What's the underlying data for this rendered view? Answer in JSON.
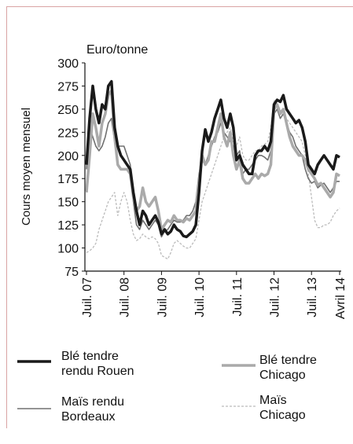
{
  "chart_data": {
    "type": "line",
    "subtitle": "Euro/tonne",
    "y_label": "Cours moyen mensuel",
    "categories": [
      "Juil. 07",
      null,
      null,
      null,
      null,
      null,
      null,
      null,
      null,
      null,
      null,
      null,
      "Juil. 08",
      null,
      null,
      null,
      null,
      null,
      null,
      null,
      null,
      null,
      null,
      null,
      "Juil. 09",
      null,
      null,
      null,
      null,
      null,
      null,
      null,
      null,
      null,
      null,
      null,
      "Juil. 10",
      null,
      null,
      null,
      null,
      null,
      null,
      null,
      null,
      null,
      null,
      null,
      "Juil. 11",
      null,
      null,
      null,
      null,
      null,
      null,
      null,
      null,
      null,
      null,
      null,
      "Juil. 12",
      null,
      null,
      null,
      null,
      null,
      null,
      null,
      null,
      null,
      null,
      null,
      "Juil. 13",
      null,
      null,
      null,
      null,
      null,
      null,
      null,
      null,
      "Avril 14"
    ],
    "ylim": [
      75,
      300
    ],
    "yticks": [
      75,
      100,
      125,
      150,
      175,
      200,
      225,
      250,
      275,
      300
    ],
    "series": [
      {
        "name": "Blé tendre rendu Rouen",
        "color": "#1a1a1a",
        "width": 3.5,
        "values": [
          190,
          240,
          275,
          250,
          235,
          255,
          250,
          275,
          280,
          230,
          210,
          200,
          195,
          190,
          185,
          160,
          140,
          125,
          140,
          135,
          125,
          130,
          135,
          128,
          115,
          120,
          115,
          118,
          125,
          120,
          118,
          113,
          112,
          115,
          118,
          125,
          160,
          205,
          228,
          215,
          225,
          240,
          250,
          260,
          240,
          230,
          245,
          230,
          195,
          200,
          190,
          185,
          180,
          180,
          200,
          205,
          205,
          210,
          205,
          215,
          255,
          260,
          258,
          265,
          250,
          245,
          240,
          235,
          238,
          230,
          215,
          190,
          185,
          180,
          190,
          195,
          200,
          195,
          190,
          185,
          200,
          198
        ]
      },
      {
        "name": "Blé tendre Chicago",
        "color": "#aaaaaa",
        "width": 3.5,
        "values": [
          160,
          200,
          245,
          230,
          210,
          235,
          245,
          265,
          270,
          220,
          190,
          185,
          185,
          185,
          180,
          155,
          140,
          145,
          165,
          150,
          145,
          150,
          155,
          140,
          120,
          125,
          130,
          128,
          135,
          130,
          130,
          128,
          132,
          130,
          135,
          140,
          170,
          200,
          190,
          195,
          215,
          215,
          230,
          245,
          220,
          210,
          225,
          200,
          185,
          195,
          175,
          170,
          170,
          175,
          180,
          175,
          180,
          178,
          180,
          190,
          250,
          255,
          245,
          250,
          235,
          220,
          210,
          205,
          200,
          200,
          195,
          185,
          180,
          175,
          168,
          170,
          165,
          160,
          155,
          160,
          180,
          178
        ]
      },
      {
        "name": "Maïs rendu Bordeaux",
        "color": "#707070",
        "width": 1.6,
        "values": [
          185,
          230,
          220,
          210,
          205,
          210,
          220,
          235,
          240,
          215,
          210,
          210,
          210,
          200,
          190,
          150,
          125,
          120,
          130,
          125,
          120,
          125,
          130,
          125,
          112,
          118,
          120,
          125,
          130,
          128,
          128,
          130,
          135,
          135,
          140,
          150,
          180,
          195,
          190,
          200,
          210,
          220,
          225,
          235,
          225,
          220,
          215,
          210,
          200,
          205,
          180,
          185,
          185,
          190,
          195,
          200,
          200,
          198,
          195,
          205,
          245,
          250,
          240,
          245,
          235,
          225,
          220,
          210,
          205,
          200,
          185,
          175,
          170,
          172,
          165,
          168,
          170,
          165,
          160,
          165,
          172,
          172
        ]
      },
      {
        "name": "Maïs Chicago",
        "color": "#bbbbbb",
        "width": 1.3,
        "dash": "3 2",
        "values": [
          95,
          97,
          100,
          105,
          120,
          130,
          140,
          150,
          155,
          160,
          135,
          150,
          160,
          150,
          130,
          115,
          108,
          110,
          115,
          112,
          110,
          112,
          110,
          105,
          92,
          90,
          88,
          95,
          105,
          108,
          105,
          102,
          100,
          100,
          105,
          110,
          130,
          150,
          160,
          170,
          180,
          190,
          200,
          210,
          220,
          225,
          230,
          215,
          210,
          220,
          200,
          195,
          195,
          200,
          205,
          205,
          210,
          212,
          215,
          230,
          260,
          255,
          250,
          245,
          240,
          235,
          230,
          225,
          220,
          215,
          200,
          180,
          155,
          130,
          122,
          122,
          125,
          125,
          128,
          135,
          140,
          143
        ]
      }
    ]
  }
}
